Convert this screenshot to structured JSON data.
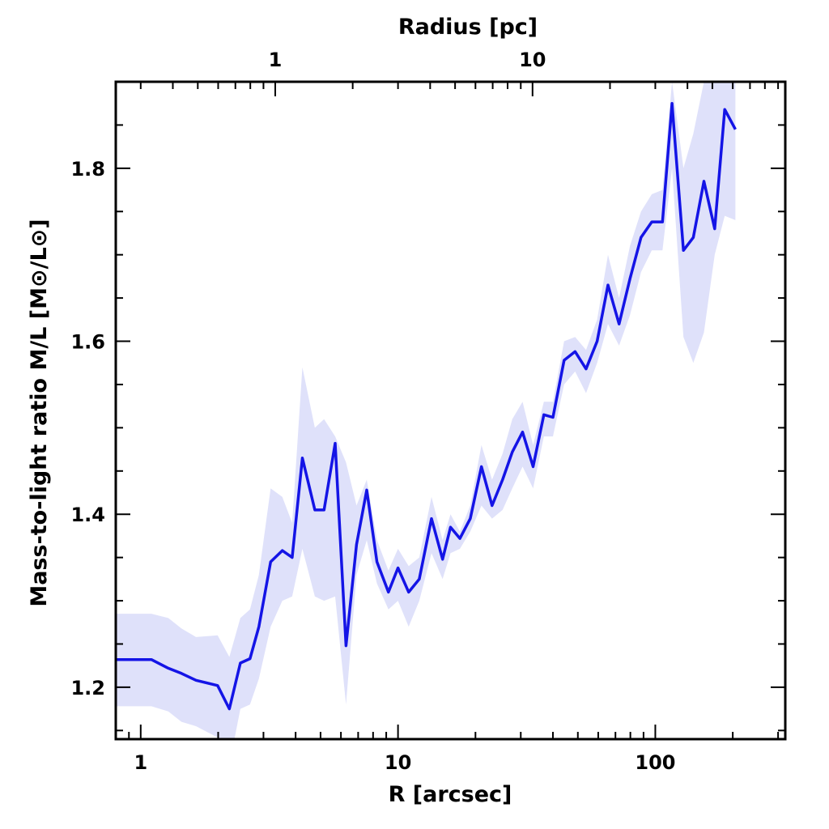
{
  "chart_data": {
    "type": "line",
    "title": "",
    "xlabel": "R [arcsec]",
    "ylabel": "Mass-to-light ratio M/L [M⊙/L⊙]",
    "top_xlabel": "Radius [pc]",
    "xscale": "log",
    "xlim": [
      0.8,
      320
    ],
    "ylim": [
      1.14,
      1.9
    ],
    "x_tick_labels": [
      "1",
      "10",
      "100"
    ],
    "x_tick_values": [
      1,
      10,
      100
    ],
    "y_tick_labels": [
      "1.2",
      "1.4",
      "1.6",
      "1.8"
    ],
    "y_tick_values": [
      1.2,
      1.4,
      1.6,
      1.8
    ],
    "top_tick_labels": [
      "1",
      "10"
    ],
    "top_tick_pc": [
      1,
      10
    ],
    "pc_per_arcsec": 0.3,
    "line_color": "#1414e6",
    "band_color": "#dfe1fa",
    "series": [
      {
        "name": "M/L",
        "x": [
          0.8,
          1.1,
          1.28,
          1.44,
          1.64,
          1.99,
          2.21,
          2.44,
          2.66,
          2.88,
          3.2,
          3.55,
          3.88,
          4.25,
          4.75,
          5.16,
          5.7,
          6.28,
          6.9,
          7.56,
          8.28,
          9.18,
          10.0,
          11.0,
          12.1,
          13.5,
          14.9,
          16.0,
          17.4,
          19.1,
          21.1,
          23.2,
          25.5,
          27.8,
          30.5,
          33.5,
          36.9,
          40.0,
          44.2,
          48.8,
          53.8,
          59.4,
          65.5,
          72.3,
          79.7,
          88.0,
          96.9,
          106.6,
          116.1,
          128.6,
          140.5,
          154.5,
          170.1,
          186.1,
          204.8
        ],
        "y": [
          1.232,
          1.232,
          1.222,
          1.216,
          1.208,
          1.202,
          1.175,
          1.228,
          1.233,
          1.27,
          1.345,
          1.358,
          1.35,
          1.465,
          1.405,
          1.405,
          1.482,
          1.248,
          1.365,
          1.428,
          1.345,
          1.31,
          1.338,
          1.31,
          1.325,
          1.395,
          1.348,
          1.385,
          1.372,
          1.395,
          1.455,
          1.41,
          1.44,
          1.472,
          1.495,
          1.455,
          1.515,
          1.512,
          1.578,
          1.588,
          1.568,
          1.6,
          1.665,
          1.62,
          1.672,
          1.72,
          1.738,
          1.738,
          1.875,
          1.705,
          1.72,
          1.785,
          1.73,
          1.868,
          1.845
        ],
        "lower": [
          1.178,
          1.178,
          1.172,
          1.16,
          1.155,
          1.142,
          1.11,
          1.175,
          1.18,
          1.21,
          1.27,
          1.3,
          1.305,
          1.36,
          1.305,
          1.3,
          1.305,
          1.18,
          1.33,
          1.37,
          1.32,
          1.29,
          1.3,
          1.27,
          1.3,
          1.355,
          1.325,
          1.355,
          1.36,
          1.38,
          1.41,
          1.395,
          1.405,
          1.43,
          1.455,
          1.43,
          1.49,
          1.49,
          1.55,
          1.565,
          1.54,
          1.575,
          1.62,
          1.595,
          1.63,
          1.68,
          1.705,
          1.705,
          1.8,
          1.605,
          1.575,
          1.61,
          1.7,
          1.745,
          1.74
        ],
        "upper": [
          1.285,
          1.285,
          1.28,
          1.268,
          1.258,
          1.26,
          1.235,
          1.28,
          1.29,
          1.33,
          1.43,
          1.42,
          1.39,
          1.57,
          1.5,
          1.51,
          1.49,
          1.46,
          1.41,
          1.44,
          1.37,
          1.335,
          1.36,
          1.34,
          1.35,
          1.42,
          1.37,
          1.4,
          1.38,
          1.41,
          1.48,
          1.44,
          1.47,
          1.51,
          1.53,
          1.48,
          1.53,
          1.53,
          1.6,
          1.605,
          1.59,
          1.625,
          1.7,
          1.65,
          1.71,
          1.75,
          1.77,
          1.775,
          1.9,
          1.8,
          1.84,
          1.9,
          1.9,
          1.9,
          1.9
        ]
      }
    ]
  }
}
